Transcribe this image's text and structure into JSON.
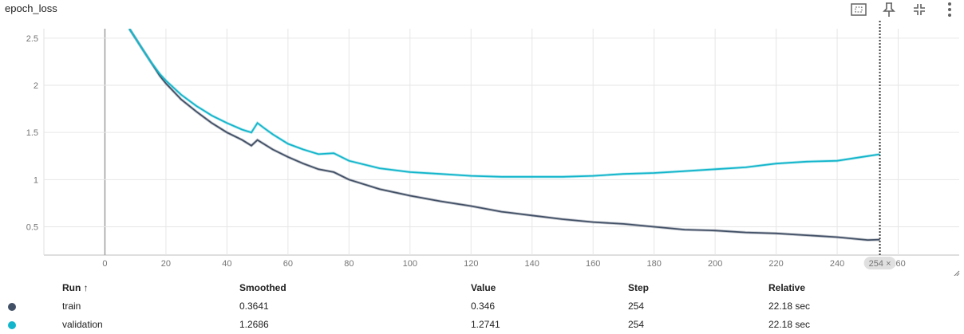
{
  "card": {
    "title": "epoch_loss"
  },
  "toolbar": {
    "icons": [
      "fit-domain-icon",
      "pin-icon",
      "collapse-icon",
      "more-vert-icon"
    ]
  },
  "hover": {
    "step_label": "254 ×"
  },
  "table": {
    "headers": {
      "run": "Run ↑",
      "smoothed": "Smoothed",
      "value": "Value",
      "step": "Step",
      "relative": "Relative"
    },
    "rows": [
      {
        "run": "train",
        "smoothed": "0.3641",
        "value": "0.346",
        "step": "254",
        "relative": "22.18 sec",
        "color": "#425066"
      },
      {
        "run": "validation",
        "smoothed": "1.2686",
        "value": "1.2741",
        "step": "254",
        "relative": "22.18 sec",
        "color": "#12b5cb"
      }
    ]
  },
  "chart_data": {
    "type": "line",
    "title": "epoch_loss",
    "xlabel": "",
    "ylabel": "",
    "xlim": [
      -20,
      280
    ],
    "ylim": [
      0.2,
      2.6
    ],
    "x_ticks": [
      0,
      20,
      40,
      60,
      80,
      100,
      120,
      140,
      160,
      180,
      200,
      220,
      240,
      260
    ],
    "y_ticks": [
      0.5,
      1,
      1.5,
      2,
      2.5
    ],
    "grid": true,
    "hover_step": 254,
    "series": [
      {
        "name": "train",
        "color": "#425066",
        "x": [
          8,
          10,
          12,
          15,
          18,
          20,
          25,
          30,
          35,
          40,
          45,
          48,
          50,
          52,
          55,
          60,
          65,
          70,
          75,
          80,
          90,
          100,
          110,
          120,
          130,
          140,
          150,
          160,
          170,
          180,
          190,
          200,
          210,
          220,
          230,
          240,
          250,
          254
        ],
        "values": [
          2.6,
          2.5,
          2.4,
          2.25,
          2.1,
          2.02,
          1.85,
          1.72,
          1.6,
          1.5,
          1.42,
          1.36,
          1.42,
          1.38,
          1.32,
          1.24,
          1.17,
          1.11,
          1.08,
          1.0,
          0.9,
          0.83,
          0.77,
          0.72,
          0.66,
          0.62,
          0.58,
          0.55,
          0.53,
          0.5,
          0.47,
          0.46,
          0.44,
          0.43,
          0.41,
          0.39,
          0.36,
          0.3641
        ]
      },
      {
        "name": "validation",
        "color": "#12b5cb",
        "x": [
          8,
          10,
          12,
          15,
          18,
          20,
          25,
          30,
          35,
          40,
          45,
          48,
          50,
          52,
          55,
          60,
          65,
          70,
          75,
          80,
          90,
          100,
          110,
          120,
          130,
          140,
          150,
          160,
          170,
          180,
          190,
          200,
          210,
          220,
          230,
          240,
          250,
          254
        ],
        "values": [
          2.6,
          2.5,
          2.4,
          2.25,
          2.12,
          2.05,
          1.9,
          1.78,
          1.68,
          1.6,
          1.53,
          1.5,
          1.6,
          1.55,
          1.48,
          1.38,
          1.32,
          1.27,
          1.28,
          1.2,
          1.12,
          1.08,
          1.06,
          1.04,
          1.03,
          1.03,
          1.03,
          1.04,
          1.06,
          1.07,
          1.09,
          1.11,
          1.13,
          1.17,
          1.19,
          1.2,
          1.25,
          1.2686
        ]
      }
    ]
  }
}
